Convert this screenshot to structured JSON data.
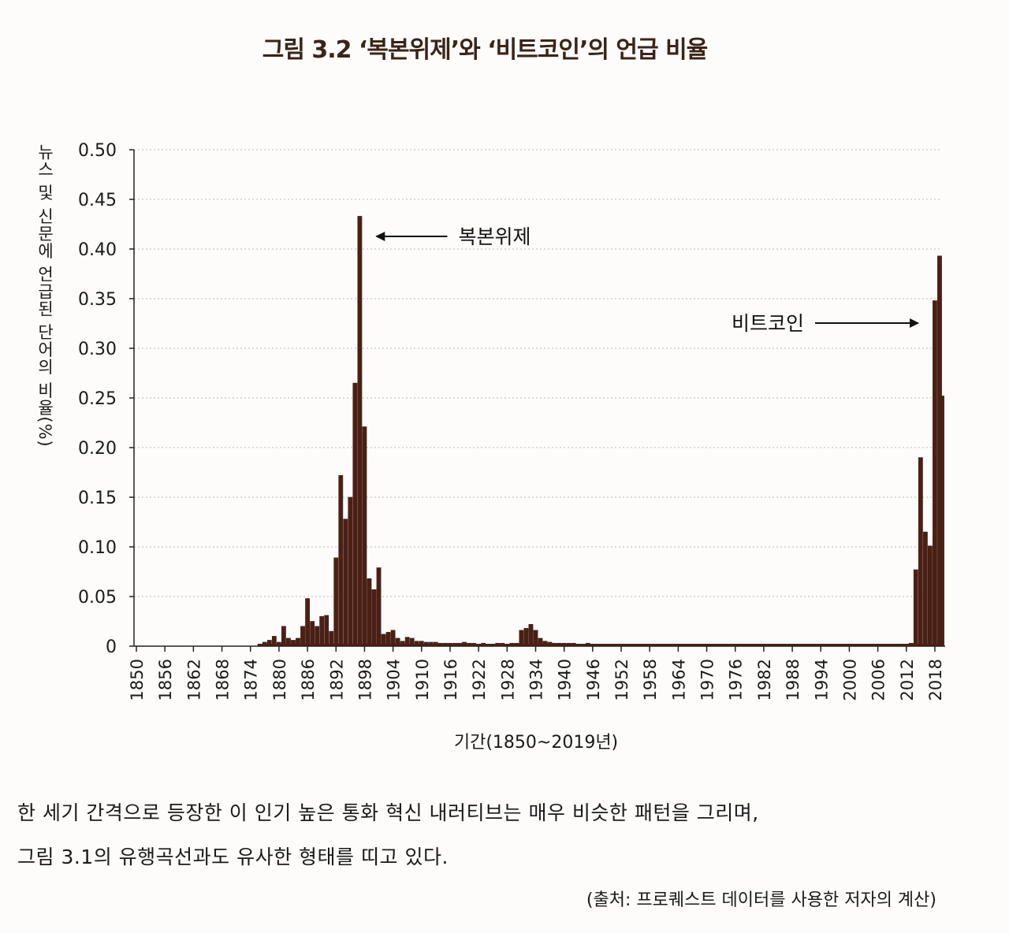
{
  "figure_title": "그림 3.2  ‘복본위제’와 ‘비트코인’의 언급 비율",
  "body": {
    "line1": "한 세기 간격으로 등장한 이 인기 높은 통화 혁신 내러티브는 매우 비슷한 패턴을 그리며,",
    "line2": "그림 3.1의 유행곡선과도 유사한 형태를 띠고 있다.",
    "source": "(출처: 프로퀘스트 데이터를 사용한 저자의 계산)"
  },
  "chart_data": {
    "type": "bar",
    "title": "그림 3.2  ‘복본위제’와 ‘비트코인’의 언급 비율",
    "xlabel": "기간(1850~2019년)",
    "ylabel": "뉴스 및 신문에 언급된 단어의 비율(%)",
    "ylim": [
      0,
      0.5
    ],
    "xlim": [
      1850,
      2019
    ],
    "grid": true,
    "bar_color": "#4a2015",
    "yticks": [
      "0",
      "0.05",
      "0.10",
      "0.15",
      "0.20",
      "0.25",
      "0.30",
      "0.35",
      "0.40",
      "0.45",
      "0.50"
    ],
    "ytick_values": [
      0,
      0.05,
      0.1,
      0.15,
      0.2,
      0.25,
      0.3,
      0.35,
      0.4,
      0.45,
      0.5
    ],
    "xticks": [
      "1850",
      "1856",
      "1862",
      "1868",
      "1874",
      "1880",
      "1886",
      "1892",
      "1898",
      "1904",
      "1910",
      "1916",
      "1922",
      "1928",
      "1934",
      "1940",
      "1946",
      "1952",
      "1958",
      "1964",
      "1970",
      "1976",
      "1982",
      "1988",
      "1994",
      "2000",
      "2006",
      "2012",
      "2018"
    ],
    "annotations": [
      {
        "text": "복본위제",
        "target_year": 1898,
        "target_value": 0.41,
        "arrow": "left"
      },
      {
        "text": "비트코인",
        "target_year": 2016,
        "target_value": 0.32,
        "arrow": "right"
      }
    ],
    "series": [
      {
        "name": "복본위제",
        "x": [
          1876,
          1877,
          1878,
          1879,
          1880,
          1881,
          1882,
          1883,
          1884,
          1885,
          1886,
          1887,
          1888,
          1889,
          1890,
          1891,
          1892,
          1893,
          1894,
          1895,
          1896,
          1897,
          1898,
          1899,
          1900,
          1901,
          1902,
          1903,
          1904,
          1905,
          1906,
          1907,
          1908,
          1909,
          1910,
          1911,
          1912,
          1913,
          1914,
          1915,
          1916,
          1917,
          1918,
          1919,
          1920,
          1921,
          1922,
          1923,
          1924,
          1925,
          1926,
          1927,
          1928,
          1929,
          1930,
          1931,
          1932,
          1933,
          1934,
          1935,
          1936,
          1937,
          1938,
          1939,
          1940,
          1941,
          1942,
          1943,
          1944,
          1945,
          1946,
          1947,
          1948,
          1949,
          1950
        ],
        "values": [
          0.002,
          0.004,
          0.006,
          0.01,
          0.004,
          0.02,
          0.008,
          0.006,
          0.008,
          0.02,
          0.048,
          0.025,
          0.02,
          0.03,
          0.031,
          0.015,
          0.089,
          0.172,
          0.128,
          0.15,
          0.265,
          0.433,
          0.221,
          0.068,
          0.057,
          0.079,
          0.012,
          0.014,
          0.016,
          0.008,
          0.005,
          0.009,
          0.008,
          0.005,
          0.005,
          0.004,
          0.004,
          0.004,
          0.003,
          0.003,
          0.003,
          0.003,
          0.003,
          0.004,
          0.003,
          0.003,
          0.002,
          0.003,
          0.002,
          0.002,
          0.003,
          0.003,
          0.002,
          0.003,
          0.003,
          0.016,
          0.018,
          0.022,
          0.016,
          0.008,
          0.005,
          0.004,
          0.003,
          0.003,
          0.003,
          0.003,
          0.003,
          0.002,
          0.002,
          0.003,
          0.002,
          0.002,
          0.002,
          0.002,
          0.002
        ]
      },
      {
        "name": "비트코인",
        "x": [
          2013,
          2014,
          2015,
          2016,
          2017,
          2018,
          2019
        ],
        "values": [
          0.003,
          0.077,
          0.19,
          0.115,
          0.101,
          0.348,
          0.393
        ]
      },
      {
        "name": "",
        "x": [
          2019.5
        ],
        "values": [
          0.252
        ]
      }
    ]
  }
}
